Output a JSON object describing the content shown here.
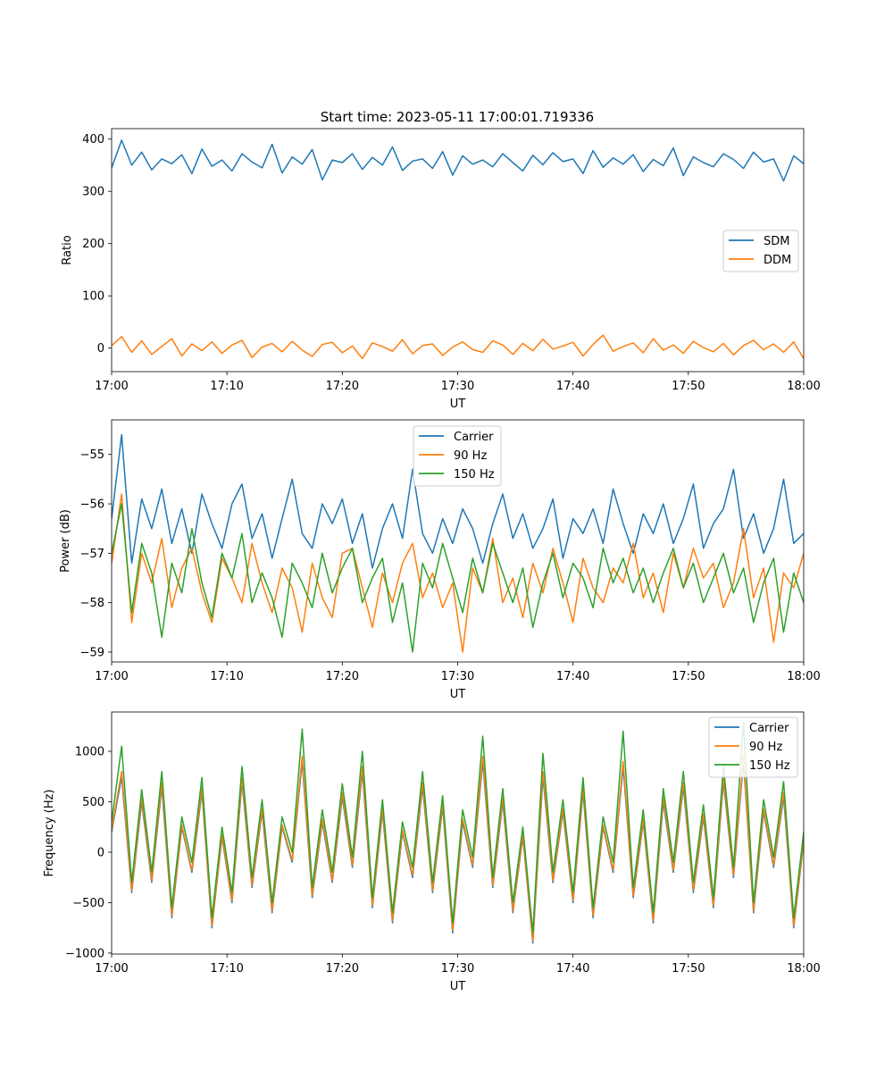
{
  "figure_title": "Start time: 2023-05-11 17:00:01.719336",
  "chart_data": [
    {
      "type": "line",
      "xlabel": "UT",
      "ylabel": "Ratio",
      "x_ticks": [
        "17:00",
        "17:10",
        "17:20",
        "17:30",
        "17:40",
        "17:50",
        "18:00"
      ],
      "y_ticks": [
        0,
        100,
        200,
        300,
        400
      ],
      "xlim_minutes": [
        0,
        60
      ],
      "ylim": [
        -45,
        420
      ],
      "legend_position": "center-right",
      "grid": false,
      "series": [
        {
          "name": "SDM",
          "color": "#1f77b4",
          "summary": {
            "mean": 358,
            "amplitude": 40
          },
          "values": [
            345,
            398,
            350,
            375,
            341,
            362,
            353,
            370,
            334,
            381,
            348,
            360,
            339,
            372,
            356,
            345,
            390,
            335,
            366,
            352,
            380,
            322,
            360,
            355,
            372,
            342,
            365,
            350,
            385,
            340,
            358,
            362,
            344,
            376,
            331,
            368,
            352,
            360,
            347,
            372,
            355,
            339,
            369,
            351,
            374,
            357,
            362,
            334,
            378,
            346,
            364,
            352,
            370,
            338,
            361,
            349,
            383,
            330,
            366,
            355,
            347,
            372,
            361,
            344,
            375,
            356,
            362,
            320,
            368,
            353
          ]
        },
        {
          "name": "DDM",
          "color": "#ff7f0e",
          "summary": {
            "mean": 0,
            "amplitude": 25
          },
          "values": [
            5,
            22,
            -8,
            14,
            -12,
            3,
            18,
            -15,
            8,
            -5,
            12,
            -10,
            6,
            15,
            -18,
            2,
            9,
            -7,
            13,
            -4,
            -16,
            7,
            11,
            -9,
            4,
            -20,
            10,
            3,
            -6,
            16,
            -11,
            5,
            8,
            -14,
            2,
            12,
            -3,
            -8,
            14,
            6,
            -12,
            9,
            -5,
            17,
            -2,
            4,
            11,
            -15,
            7,
            25,
            -6,
            3,
            10,
            -9,
            18,
            -4,
            6,
            -10,
            13,
            1,
            -7,
            9,
            -13,
            5,
            15,
            -3,
            8,
            -8,
            12,
            -20
          ]
        }
      ]
    },
    {
      "type": "line",
      "xlabel": "UT",
      "ylabel": "Power (dB)",
      "x_ticks": [
        "17:00",
        "17:10",
        "17:20",
        "17:30",
        "17:40",
        "17:50",
        "18:00"
      ],
      "y_ticks": [
        -55,
        -56,
        -57,
        -58,
        -59
      ],
      "xlim_minutes": [
        0,
        60
      ],
      "ylim": [
        -59.2,
        -54.3
      ],
      "legend_position": "top-center",
      "grid": false,
      "series": [
        {
          "name": "Carrier",
          "color": "#1f77b4",
          "summary": {
            "mean": -56.4,
            "amplitude": 0.9
          },
          "values": [
            -56.3,
            -54.6,
            -57.2,
            -55.9,
            -56.5,
            -55.7,
            -56.8,
            -56.1,
            -57.0,
            -55.8,
            -56.4,
            -56.9,
            -56.0,
            -55.6,
            -56.7,
            -56.2,
            -57.1,
            -56.3,
            -55.5,
            -56.6,
            -56.9,
            -56.0,
            -56.4,
            -55.9,
            -56.8,
            -56.2,
            -57.3,
            -56.5,
            -56.0,
            -56.7,
            -55.3,
            -56.6,
            -57.0,
            -56.3,
            -56.8,
            -56.1,
            -56.5,
            -57.2,
            -56.4,
            -55.8,
            -56.7,
            -56.2,
            -56.9,
            -56.5,
            -55.9,
            -57.1,
            -56.3,
            -56.6,
            -56.1,
            -56.8,
            -55.7,
            -56.4,
            -57.0,
            -56.2,
            -56.6,
            -56.0,
            -56.8,
            -56.3,
            -55.6,
            -56.9,
            -56.4,
            -56.1,
            -55.3,
            -56.7,
            -56.2,
            -57.0,
            -56.5,
            -55.5,
            -56.8,
            -56.6
          ]
        },
        {
          "name": "90 Hz",
          "color": "#ff7f0e",
          "summary": {
            "mean": -57.5,
            "amplitude": 0.8
          },
          "values": [
            -57.2,
            -55.8,
            -58.4,
            -57.0,
            -57.6,
            -56.7,
            -58.1,
            -57.3,
            -56.9,
            -57.8,
            -58.4,
            -57.1,
            -57.5,
            -58.0,
            -56.8,
            -57.6,
            -58.2,
            -57.3,
            -57.7,
            -58.6,
            -57.2,
            -57.9,
            -58.3,
            -57.0,
            -56.9,
            -57.7,
            -58.5,
            -57.4,
            -58.0,
            -57.2,
            -56.8,
            -57.9,
            -57.4,
            -58.1,
            -57.6,
            -59.0,
            -57.3,
            -57.8,
            -56.7,
            -58.0,
            -57.5,
            -58.3,
            -57.2,
            -57.8,
            -56.9,
            -57.6,
            -58.4,
            -57.1,
            -57.7,
            -58.0,
            -57.3,
            -57.6,
            -56.8,
            -57.9,
            -57.4,
            -58.2,
            -57.0,
            -57.7,
            -56.9,
            -57.5,
            -57.2,
            -58.1,
            -57.6,
            -56.5,
            -57.9,
            -57.3,
            -58.8,
            -57.4,
            -57.7,
            -57.0
          ]
        },
        {
          "name": "150 Hz",
          "color": "#2ca02c",
          "summary": {
            "mean": -57.5,
            "amplitude": 0.8
          },
          "values": [
            -57.0,
            -56.0,
            -58.2,
            -56.8,
            -57.4,
            -58.7,
            -57.2,
            -57.8,
            -56.5,
            -57.6,
            -58.3,
            -57.0,
            -57.5,
            -56.6,
            -58.0,
            -57.4,
            -57.9,
            -58.7,
            -57.2,
            -57.6,
            -58.1,
            -57.0,
            -57.8,
            -57.3,
            -56.9,
            -58.0,
            -57.5,
            -57.1,
            -58.4,
            -57.6,
            -59.0,
            -57.2,
            -57.7,
            -56.8,
            -57.5,
            -58.2,
            -57.1,
            -57.8,
            -56.8,
            -57.4,
            -58.0,
            -57.3,
            -58.5,
            -57.6,
            -57.0,
            -57.9,
            -57.2,
            -57.5,
            -58.1,
            -56.9,
            -57.6,
            -57.1,
            -57.8,
            -57.3,
            -58.0,
            -57.4,
            -56.9,
            -57.7,
            -57.2,
            -58.0,
            -57.5,
            -57.0,
            -57.8,
            -57.3,
            -58.4,
            -57.6,
            -57.1,
            -58.6,
            -57.4,
            -58.0
          ]
        }
      ]
    },
    {
      "type": "line",
      "xlabel": "UT",
      "ylabel": "Frequency (Hz)",
      "x_ticks": [
        "17:00",
        "17:10",
        "17:20",
        "17:30",
        "17:40",
        "17:50",
        "18:00"
      ],
      "y_ticks": [
        1000,
        500,
        0,
        -500,
        -1000
      ],
      "xlim_minutes": [
        0,
        60
      ],
      "ylim": [
        -1010,
        1390
      ],
      "legend_position": "top-right",
      "grid": false,
      "series": [
        {
          "name": "Carrier",
          "color": "#1f77b4",
          "summary": {
            "mean": 0,
            "amplitude": 850
          },
          "values": [
            200,
            750,
            -400,
            500,
            -300,
            650,
            -650,
            250,
            -200,
            600,
            -750,
            150,
            -500,
            700,
            -350,
            400,
            -600,
            250,
            -100,
            900,
            -450,
            300,
            -300,
            550,
            -150,
            800,
            -550,
            400,
            -700,
            200,
            -250,
            650,
            -400,
            450,
            -800,
            300,
            -150,
            900,
            -350,
            500,
            -600,
            150,
            -900,
            750,
            -300,
            400,
            -500,
            600,
            -650,
            250,
            -200,
            850,
            -450,
            300,
            -700,
            500,
            -200,
            650,
            -400,
            350,
            -550,
            700,
            -250,
            900,
            -600,
            400,
            -150,
            550,
            -750,
            100
          ]
        },
        {
          "name": "90 Hz",
          "color": "#ff7f0e",
          "summary": {
            "mean": 0,
            "amplitude": 900
          },
          "values": [
            220,
            800,
            -380,
            540,
            -280,
            690,
            -630,
            270,
            -180,
            640,
            -730,
            170,
            -480,
            740,
            -330,
            430,
            -580,
            270,
            -80,
            950,
            -430,
            330,
            -280,
            590,
            -130,
            850,
            -530,
            430,
            -680,
            220,
            -230,
            690,
            -380,
            480,
            -780,
            330,
            -130,
            950,
            -330,
            540,
            -580,
            170,
            -880,
            800,
            -280,
            430,
            -480,
            640,
            -630,
            270,
            -180,
            900,
            -430,
            330,
            -680,
            540,
            -180,
            690,
            -380,
            380,
            -530,
            740,
            -230,
            950,
            -580,
            430,
            -130,
            590,
            -730,
            120
          ]
        },
        {
          "name": "150 Hz",
          "color": "#2ca02c",
          "summary": {
            "mean": 50,
            "amplitude": 950
          },
          "values": [
            300,
            1050,
            -300,
            620,
            -200,
            800,
            -550,
            350,
            -100,
            740,
            -650,
            250,
            -400,
            850,
            -250,
            520,
            -500,
            350,
            0,
            1220,
            -350,
            420,
            -200,
            680,
            -50,
            1000,
            -450,
            520,
            -600,
            300,
            -150,
            800,
            -300,
            560,
            -700,
            420,
            -50,
            1150,
            -250,
            630,
            -500,
            250,
            -800,
            980,
            -200,
            520,
            -400,
            740,
            -550,
            350,
            -100,
            1200,
            -350,
            420,
            -600,
            630,
            -100,
            800,
            -300,
            470,
            -450,
            850,
            -150,
            1280,
            -500,
            520,
            -50,
            700,
            -650,
            200
          ]
        }
      ]
    }
  ]
}
